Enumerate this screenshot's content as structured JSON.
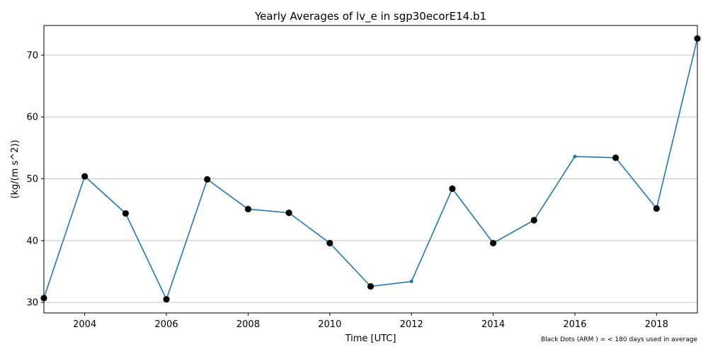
{
  "chart_data": {
    "type": "line",
    "title": "Yearly Averages of lv_e in sgp30ecorE14.b1",
    "xlabel": "Time [UTC]",
    "ylabel": "(kg/(m s^2))",
    "footnote": "Black Dots (ARM ) = < 180 days used in average",
    "xlim": [
      2003,
      2019
    ],
    "ylim": [
      28.3,
      74.8
    ],
    "x_ticks": [
      2004,
      2006,
      2008,
      2010,
      2012,
      2014,
      2016,
      2018
    ],
    "x_tick_labels": [
      "2004",
      "2006",
      "2008",
      "2010",
      "2012",
      "2014",
      "2016",
      "2018"
    ],
    "y_ticks": [
      30,
      40,
      50,
      60,
      70
    ],
    "y_tick_labels": [
      "30",
      "40",
      "50",
      "60",
      "70"
    ],
    "grid": "horizontal",
    "line_color": "#1f77b4",
    "marker_flag_color": "#000000",
    "series": [
      {
        "x": [
          2003,
          2004,
          2005,
          2006,
          2007,
          2008,
          2009,
          2010,
          2011,
          2012,
          2013,
          2014,
          2015,
          2016,
          2017,
          2018,
          2019
        ],
        "values": [
          30.7,
          50.4,
          44.4,
          30.5,
          49.9,
          45.1,
          44.5,
          39.6,
          32.6,
          33.4,
          48.4,
          39.6,
          43.3,
          53.6,
          53.4,
          45.2,
          72.7
        ],
        "flagged": [
          true,
          true,
          true,
          true,
          true,
          true,
          true,
          true,
          true,
          false,
          true,
          true,
          true,
          false,
          true,
          true,
          true
        ]
      }
    ]
  }
}
